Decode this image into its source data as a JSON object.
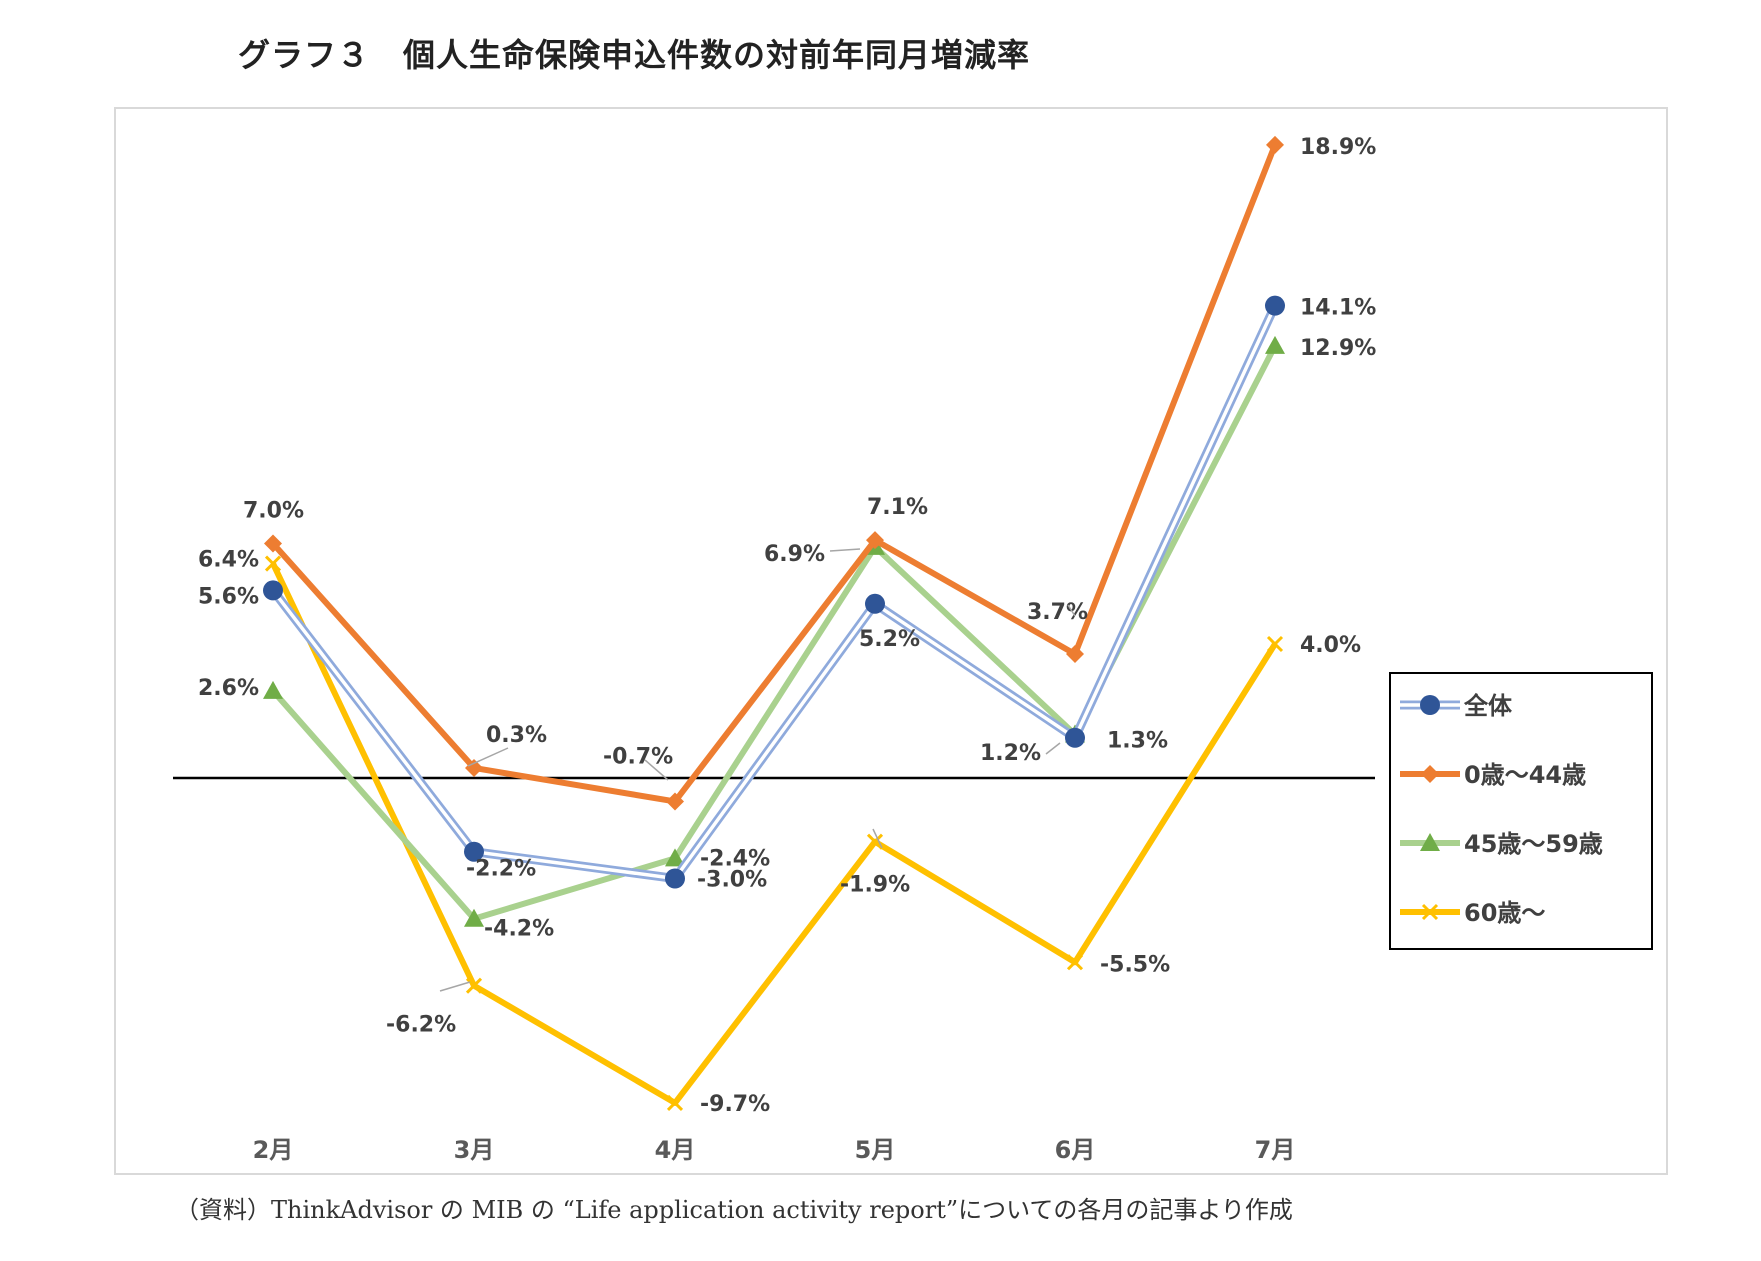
{
  "title": "グラフ３　個人生命保険申込件数の対前年同月増減率",
  "source": "（資料）ThinkAdvisor の MIB の “Life application activity report”についての各月の記事より作成",
  "chart_data": {
    "type": "line",
    "title": "グラフ３　個人生命保険申込件数の対前年同月増減率",
    "categories": [
      "2月",
      "3月",
      "4月",
      "5月",
      "6月",
      "7月"
    ],
    "ylim": [
      -10.5,
      19.5
    ],
    "baseline": 0,
    "legend_position": "right",
    "series": [
      {
        "name": "全体",
        "color": "#2F5597",
        "line_color": "#8FAADC",
        "style": "double",
        "marker": "circle",
        "values": [
          5.6,
          -2.2,
          -3.0,
          5.2,
          1.2,
          14.1
        ],
        "labels": [
          "5.6%",
          "-2.2%",
          "-3.0%",
          "5.2%",
          "1.2%",
          "14.1%"
        ]
      },
      {
        "name": "0歳～44歳",
        "color": "#ED7D31",
        "line_color": "#ED7D31",
        "style": "solid",
        "marker": "diamond",
        "values": [
          7.0,
          0.3,
          -0.7,
          7.1,
          3.7,
          18.9
        ],
        "labels": [
          "7.0%",
          "0.3%",
          "-0.7%",
          "7.1%",
          "3.7%",
          "18.9%"
        ]
      },
      {
        "name": "45歳～59歳",
        "color": "#70AD47",
        "line_color": "#A9D18E",
        "style": "solid",
        "marker": "triangle",
        "values": [
          2.6,
          -4.2,
          -2.4,
          6.9,
          1.3,
          12.9
        ],
        "labels": [
          "2.6%",
          "-4.2%",
          "-2.4%",
          "6.9%",
          "1.3%",
          "12.9%"
        ]
      },
      {
        "name": "60歳～",
        "color": "#FFC000",
        "line_color": "#FFC000",
        "style": "solid",
        "marker": "x",
        "values": [
          6.4,
          -6.2,
          -9.7,
          -1.9,
          -5.5,
          4.0
        ],
        "labels": [
          "6.4%",
          "-6.2%",
          "-9.7%",
          "-1.9%",
          "-5.5%",
          "4.0%"
        ]
      }
    ]
  }
}
